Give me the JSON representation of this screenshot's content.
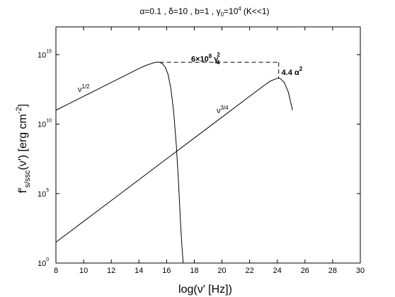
{
  "chart_data": {
    "type": "line",
    "title": "α=0.1 , δ=10 , b=1 , γ₀=10⁴ (K<<1)",
    "title_parts": {
      "alpha": "α=0.1",
      "delta": "δ=10",
      "b": "b=1",
      "gamma_base": "γ",
      "gamma_sub": "0",
      "gamma_eq": "=10",
      "gamma_exp": "4",
      "tail": "(K<<1)",
      "sep": " , "
    },
    "xlabel": "log(ν′ [Hz])",
    "ylabel_parts": {
      "f": "f",
      "prime": "′",
      "sub": "s/ssc",
      "arg": "(ν′) [erg cm",
      "unit_exp": "-2",
      "close": "]"
    },
    "xlim": [
      8,
      30
    ],
    "ylim_log10": [
      0,
      17
    ],
    "x_ticks": [
      8,
      10,
      12,
      14,
      16,
      18,
      20,
      22,
      24,
      26,
      28,
      30
    ],
    "x_tick_labels": [
      "8",
      "10",
      "12",
      "14",
      "16",
      "18",
      "20",
      "22",
      "24",
      "26",
      "28",
      "30"
    ],
    "y_ticks_log10": [
      0,
      5,
      10,
      15
    ],
    "y_tick_base": "10",
    "y_tick_exponents": [
      "0",
      "5",
      "10",
      "15"
    ],
    "grid": false,
    "series": [
      {
        "label": "ν",
        "label_exp": "1/2",
        "x": [
          8,
          9,
          10,
          11,
          12,
          13,
          13.5,
          14,
          14.5,
          15,
          15.3,
          15.5,
          15.7,
          15.9,
          16.1,
          16.3,
          16.5,
          16.7,
          16.85,
          17,
          17.1,
          17.2
        ],
        "log10_y": [
          11.0,
          11.5,
          12.0,
          12.5,
          13.0,
          13.5,
          13.75,
          14.0,
          14.22,
          14.4,
          14.46,
          14.45,
          14.35,
          14.1,
          13.6,
          12.6,
          11.0,
          8.5,
          6.0,
          3.0,
          1.3,
          0.0
        ]
      },
      {
        "label": "ν",
        "label_exp": "3/4",
        "x": [
          8,
          10,
          12,
          14,
          16,
          18,
          20,
          22,
          23,
          23.5,
          24,
          24.2,
          24.5,
          24.8,
          25.1
        ],
        "log10_y": [
          1.5,
          3.0,
          4.5,
          6.0,
          7.5,
          9.0,
          10.5,
          12.0,
          12.75,
          13.1,
          13.3,
          13.3,
          13.0,
          12.3,
          11.0
        ]
      }
    ],
    "annotations": [
      {
        "text": "6×10",
        "exp": "8",
        "gamma": "γ",
        "gamma_sub": "4",
        "gamma_exp": "2",
        "bracket": {
          "x_from": 15.5,
          "x_to": 24.1,
          "log10_y": 14.45,
          "log10_y_end": 13.3
        }
      },
      {
        "text": "4.4 α",
        "exp": "2",
        "at": {
          "x": 24.1,
          "log10_y": 13.8
        }
      }
    ]
  }
}
